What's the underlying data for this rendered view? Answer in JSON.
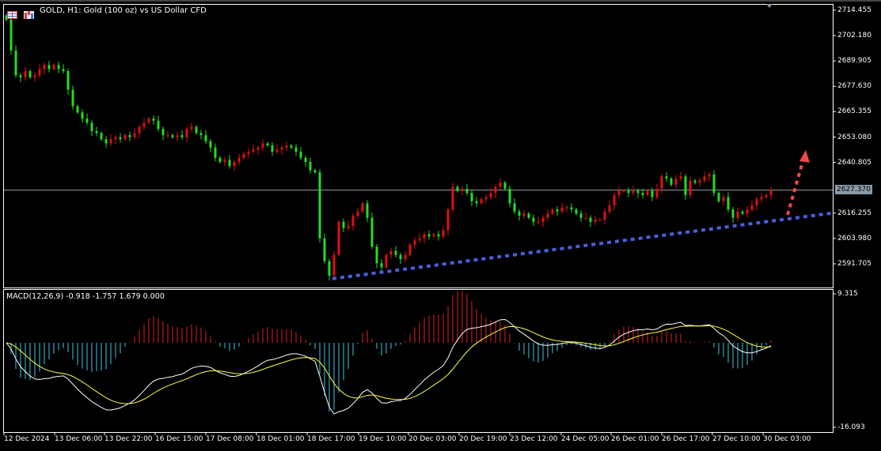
{
  "header": {
    "title": "GOLD, H1:  Gold (100 oz) vs US Dollar CFD",
    "icons": [
      "table-icon",
      "chart-bars-icon"
    ]
  },
  "colors": {
    "background": "#000000",
    "bull": "#e01010",
    "bear": "#22dd22",
    "trendline": "#4a5fe0",
    "arrow": "#f04848",
    "macd_line": "#ffffff",
    "signal_line": "#ffff40",
    "hist_pos": "#e02020",
    "hist_neg": "#40c8e0",
    "current_price_line": "#9aa0a8"
  },
  "current_price": "2627.370",
  "indicator": {
    "label": "MACD(12,26,9) -0.918 -1.757 1.679 0.000"
  },
  "chart_data": {
    "type": "candlestick",
    "symbol": "GOLD",
    "timeframe": "H1",
    "ylim": [
      2585,
      2717
    ],
    "y_ticks": [
      "2714.455",
      "2702.180",
      "2689.905",
      "2677.630",
      "2665.355",
      "2653.080",
      "2640.805",
      "2616.255",
      "2603.980",
      "2591.705"
    ],
    "x_ticks": [
      "12 Dec 2024",
      "13 Dec 06:00",
      "13 Dec 22:00",
      "16 Dec 15:00",
      "17 Dec 08:00",
      "18 Dec 01:00",
      "18 Dec 17:00",
      "19 Dec 10:00",
      "20 Dec 03:00",
      "20 Dec 19:00",
      "23 Dec 12:00",
      "24 Dec 05:00",
      "26 Dec 01:00",
      "26 Dec 17:00",
      "27 Dec 10:00",
      "30 Dec 03:00"
    ],
    "first_open": 2712,
    "close": [
      2709.9,
      2695,
      2683,
      2682,
      2685,
      2682,
      2683,
      2686,
      2688,
      2686,
      2688,
      2686,
      2685,
      2676,
      2668,
      2665,
      2662,
      2660,
      2656,
      2655,
      2652,
      2650,
      2652,
      2653,
      2652,
      2654,
      2653,
      2655,
      2658,
      2660,
      2662,
      2661,
      2657,
      2654,
      2654,
      2653,
      2654,
      2653,
      2657,
      2658,
      2655,
      2654,
      2651,
      2648,
      2643,
      2641,
      2642,
      2639,
      2641,
      2643,
      2645,
      2646,
      2647,
      2648,
      2650,
      2649,
      2646,
      2647,
      2648,
      2649,
      2648,
      2646,
      2643,
      2641,
      2637,
      2636,
      2604,
      2593,
      2586,
      2596,
      2612,
      2609,
      2610,
      2615,
      2617,
      2621,
      2614,
      2600,
      2592,
      2590,
      2596,
      2598,
      2596,
      2594,
      2596,
      2601,
      2603,
      2604,
      2606,
      2605,
      2606,
      2605,
      2608,
      2618,
      2629,
      2627,
      2628,
      2626,
      2622,
      2621,
      2623,
      2624,
      2626,
      2629,
      2631,
      2628,
      2621,
      2617,
      2615,
      2616,
      2614,
      2612,
      2612,
      2614,
      2616,
      2618,
      2617,
      2619,
      2619,
      2618,
      2616,
      2614,
      2614,
      2612,
      2613,
      2613,
      2617,
      2620,
      2625,
      2627,
      2627,
      2626,
      2627,
      2626,
      2625,
      2627,
      2624,
      2628,
      2634,
      2633,
      2630,
      2633,
      2634,
      2625,
      2632,
      2631,
      2632,
      2634,
      2635,
      2626,
      2622,
      2624,
      2618,
      2614,
      2617,
      2616,
      2618,
      2620,
      2623,
      2624,
      2625,
      2627.37
    ],
    "macd_panel": {
      "params": [
        12,
        26,
        9
      ],
      "ylim": [
        -16.093,
        9.315
      ],
      "y_ticks": [
        "9.315",
        "-16.093"
      ]
    },
    "annotations": [
      {
        "type": "trendline",
        "style": "dotted",
        "color": "#4a5fe0",
        "from_price": 2584.5,
        "to_price": 2616.3
      },
      {
        "type": "arrow",
        "style": "dotted",
        "color": "#f04848",
        "direction": "up"
      }
    ]
  }
}
